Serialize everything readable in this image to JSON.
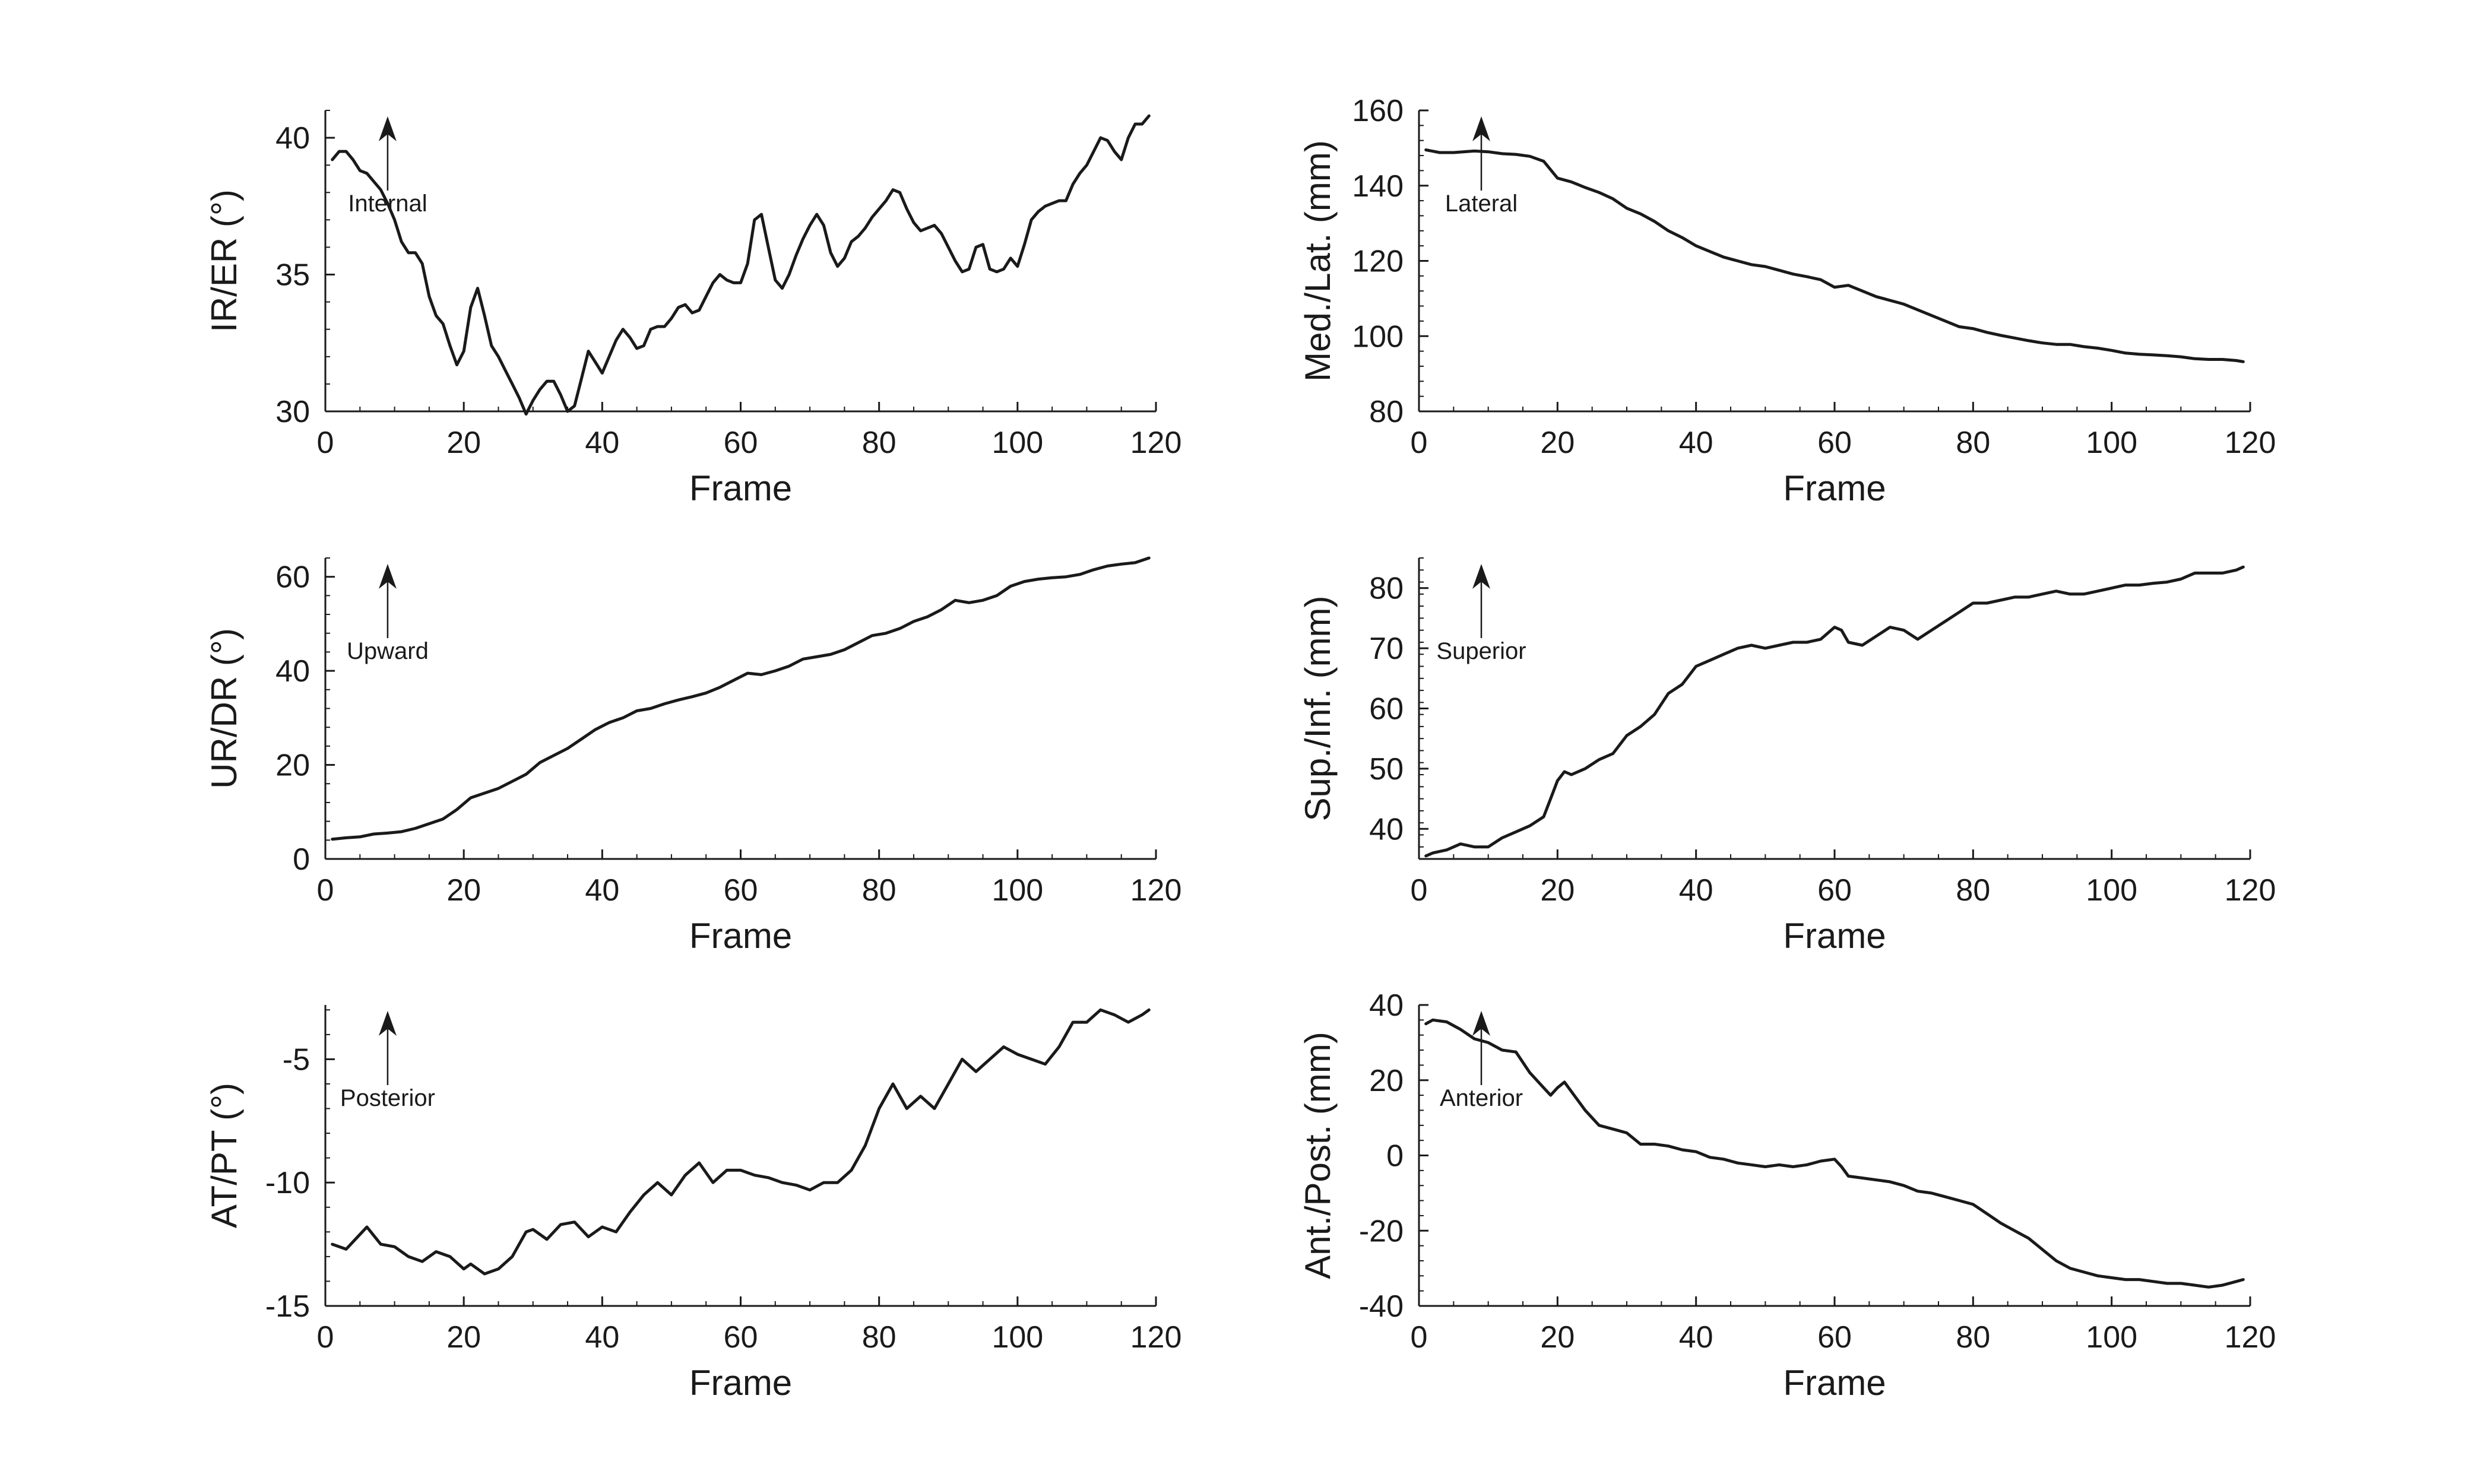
{
  "chart_data": [
    {
      "type": "line",
      "panel": "top-left",
      "xlabel": "Frame",
      "ylabel": "IR/ER (°)",
      "xlim": [
        0,
        120
      ],
      "ylim": [
        30,
        41
      ],
      "xticks": [
        0,
        20,
        40,
        60,
        80,
        100,
        120
      ],
      "yticks": [
        30,
        35,
        40
      ],
      "grid": false,
      "annotation": {
        "text": "Internal",
        "arrow": "up",
        "x": 9
      },
      "series": [
        {
          "x": [
            1,
            2,
            3,
            4,
            5,
            6,
            7,
            8,
            9,
            10,
            11,
            12,
            13,
            14,
            15,
            16,
            17,
            18,
            19,
            20,
            21,
            22,
            23,
            24,
            25,
            26,
            27,
            28,
            29,
            30,
            31,
            32,
            33,
            34,
            35,
            36,
            37,
            38,
            39,
            40,
            41,
            42,
            43,
            44,
            45,
            46,
            47,
            48,
            49,
            50,
            51,
            52,
            53,
            54,
            55,
            56,
            57,
            58,
            59,
            60,
            61,
            62,
            63,
            64,
            65,
            66,
            67,
            68,
            69,
            70,
            71,
            72,
            73,
            74,
            75,
            76,
            77,
            78,
            79,
            80,
            81,
            82,
            83,
            84,
            85,
            86,
            87,
            88,
            89,
            90,
            91,
            92,
            93,
            94,
            95,
            96,
            97,
            98,
            99,
            100,
            101,
            102,
            103,
            104,
            105,
            106,
            107,
            108,
            109,
            110,
            111,
            112,
            113,
            114,
            115,
            116,
            117,
            118,
            119
          ],
          "values": [
            39.2,
            39.5,
            39.5,
            39.2,
            38.8,
            38.7,
            38.4,
            38.1,
            37.6,
            37.0,
            36.2,
            35.8,
            35.8,
            35.4,
            34.2,
            33.5,
            33.2,
            32.4,
            31.7,
            32.2,
            33.8,
            34.5,
            33.5,
            32.4,
            32.0,
            31.5,
            31.0,
            30.5,
            29.9,
            30.4,
            30.8,
            31.1,
            31.1,
            30.6,
            30.0,
            30.2,
            31.2,
            32.2,
            31.8,
            31.4,
            32.0,
            32.6,
            33.0,
            32.7,
            32.3,
            32.4,
            33.0,
            33.1,
            33.1,
            33.4,
            33.8,
            33.9,
            33.6,
            33.7,
            34.2,
            34.7,
            35.0,
            34.8,
            34.7,
            34.7,
            35.4,
            37.0,
            37.2,
            36.0,
            34.8,
            34.5,
            35.0,
            35.7,
            36.3,
            36.8,
            37.2,
            36.8,
            35.8,
            35.3,
            35.6,
            36.2,
            36.4,
            36.7,
            37.1,
            37.4,
            37.7,
            38.1,
            38.0,
            37.4,
            36.9,
            36.6,
            36.7,
            36.8,
            36.5,
            36.0,
            35.5,
            35.1,
            35.2,
            36.0,
            36.1,
            35.2,
            35.1,
            35.2,
            35.6,
            35.3,
            36.1,
            37.0,
            37.3,
            37.5,
            37.6,
            37.7,
            37.7,
            38.3,
            38.7,
            39.0,
            39.5,
            40.0,
            39.9,
            39.5,
            39.2,
            40.0,
            40.5,
            40.5,
            40.8
          ]
        }
      ]
    },
    {
      "type": "line",
      "panel": "top-right",
      "xlabel": "Frame",
      "ylabel": "Med./Lat. (mm)",
      "xlim": [
        0,
        120
      ],
      "ylim": [
        80,
        160
      ],
      "xticks": [
        0,
        20,
        40,
        60,
        80,
        100,
        120
      ],
      "yticks": [
        80,
        100,
        120,
        140,
        160
      ],
      "grid": false,
      "annotation": {
        "text": "Lateral",
        "arrow": "up",
        "x": 9
      },
      "series": [
        {
          "x": [
            1,
            3,
            5,
            8,
            10,
            12,
            14,
            16,
            18,
            20,
            22,
            24,
            26,
            28,
            30,
            32,
            34,
            36,
            38,
            40,
            42,
            44,
            46,
            48,
            50,
            52,
            54,
            56,
            58,
            60,
            62,
            64,
            66,
            68,
            70,
            72,
            74,
            76,
            78,
            80,
            82,
            84,
            86,
            88,
            90,
            92,
            94,
            96,
            98,
            100,
            102,
            104,
            106,
            108,
            110,
            112,
            114,
            116,
            118,
            119
          ],
          "values": [
            149.5,
            148.8,
            148.8,
            149.2,
            149.0,
            148.5,
            148.3,
            147.8,
            146.5,
            142.0,
            141.0,
            139.5,
            138.2,
            136.5,
            134.0,
            132.5,
            130.5,
            128.0,
            126.2,
            124.0,
            122.5,
            121.0,
            120.0,
            119.0,
            118.5,
            117.5,
            116.5,
            115.8,
            115.0,
            113.0,
            113.5,
            112.0,
            110.5,
            109.5,
            108.5,
            107.0,
            105.5,
            104.0,
            102.5,
            102.0,
            101.0,
            100.2,
            99.5,
            98.8,
            98.2,
            97.8,
            97.8,
            97.2,
            96.8,
            96.2,
            95.5,
            95.2,
            95.0,
            94.8,
            94.5,
            94.0,
            93.8,
            93.8,
            93.5,
            93.2
          ]
        }
      ]
    },
    {
      "type": "line",
      "panel": "middle-left",
      "xlabel": "Frame",
      "ylabel": "UR/DR (°)",
      "xlim": [
        0,
        120
      ],
      "ylim": [
        0,
        64
      ],
      "xticks": [
        0,
        20,
        40,
        60,
        80,
        100,
        120
      ],
      "yticks": [
        0,
        20,
        40,
        60
      ],
      "grid": false,
      "annotation": {
        "text": "Upward",
        "arrow": "up",
        "x": 9
      },
      "series": [
        {
          "x": [
            1,
            3,
            5,
            7,
            9,
            11,
            13,
            15,
            17,
            19,
            21,
            23,
            25,
            27,
            29,
            31,
            33,
            35,
            37,
            39,
            41,
            43,
            45,
            47,
            49,
            51,
            53,
            55,
            57,
            59,
            61,
            63,
            65,
            67,
            69,
            71,
            73,
            75,
            77,
            79,
            81,
            83,
            85,
            87,
            89,
            91,
            93,
            95,
            97,
            99,
            101,
            103,
            105,
            107,
            109,
            111,
            113,
            115,
            117,
            119
          ],
          "values": [
            4.2,
            4.5,
            4.7,
            5.3,
            5.5,
            5.8,
            6.5,
            7.5,
            8.5,
            10.5,
            13.0,
            14.0,
            15.0,
            16.5,
            18.0,
            20.5,
            22.0,
            23.5,
            25.5,
            27.5,
            29.0,
            30.0,
            31.5,
            32.0,
            33.0,
            33.8,
            34.5,
            35.3,
            36.5,
            38.0,
            39.5,
            39.2,
            40.0,
            41.0,
            42.5,
            43.0,
            43.5,
            44.5,
            46.0,
            47.5,
            48.0,
            49.0,
            50.5,
            51.5,
            53.0,
            55.0,
            54.5,
            55.0,
            56.0,
            58.0,
            59.0,
            59.5,
            59.8,
            60.0,
            60.5,
            61.5,
            62.3,
            62.7,
            63.0,
            64.0
          ]
        }
      ]
    },
    {
      "type": "line",
      "panel": "middle-right",
      "xlabel": "Frame",
      "ylabel": "Sup./Inf. (mm)",
      "xlim": [
        0,
        120
      ],
      "ylim": [
        35,
        85
      ],
      "xticks": [
        0,
        20,
        40,
        60,
        80,
        100,
        120
      ],
      "yticks": [
        40,
        50,
        60,
        70,
        80
      ],
      "grid": false,
      "annotation": {
        "text": "Superior",
        "arrow": "up",
        "x": 9
      },
      "series": [
        {
          "x": [
            1,
            2,
            4,
            6,
            8,
            10,
            12,
            14,
            16,
            18,
            19,
            20,
            21,
            22,
            24,
            26,
            28,
            30,
            32,
            34,
            36,
            38,
            40,
            42,
            44,
            46,
            48,
            50,
            52,
            54,
            56,
            58,
            60,
            61,
            62,
            64,
            66,
            68,
            70,
            72,
            74,
            76,
            78,
            80,
            82,
            84,
            86,
            88,
            90,
            92,
            94,
            96,
            98,
            100,
            102,
            104,
            106,
            108,
            110,
            112,
            114,
            116,
            118,
            119
          ],
          "values": [
            35.5,
            36.0,
            36.5,
            37.5,
            37.0,
            37.0,
            38.5,
            39.5,
            40.5,
            42.0,
            45.0,
            48.0,
            49.5,
            49.0,
            50.0,
            51.5,
            52.5,
            55.5,
            57.0,
            59.0,
            62.5,
            64.0,
            67.0,
            68.0,
            69.0,
            70.0,
            70.5,
            70.0,
            70.5,
            71.0,
            71.0,
            71.5,
            73.5,
            73.0,
            71.0,
            70.5,
            72.0,
            73.5,
            73.0,
            71.5,
            73.0,
            74.5,
            76.0,
            77.5,
            77.5,
            78.0,
            78.5,
            78.5,
            79.0,
            79.5,
            79.0,
            79.0,
            79.5,
            80.0,
            80.5,
            80.5,
            80.8,
            81.0,
            81.5,
            82.5,
            82.5,
            82.5,
            83.0,
            83.5
          ]
        }
      ]
    },
    {
      "type": "line",
      "panel": "bottom-left",
      "xlabel": "Frame",
      "ylabel": "AT/PT (°)",
      "xlim": [
        0,
        120
      ],
      "ylim": [
        -15,
        -2.8
      ],
      "xticks": [
        0,
        20,
        40,
        60,
        80,
        100,
        120
      ],
      "yticks": [
        -15,
        -10,
        -5
      ],
      "grid": false,
      "annotation": {
        "text": "Posterior",
        "arrow": "up",
        "x": 9
      },
      "series": [
        {
          "x": [
            1,
            3,
            4,
            6,
            8,
            10,
            12,
            14,
            16,
            18,
            20,
            21,
            23,
            25,
            27,
            29,
            30,
            32,
            34,
            36,
            38,
            40,
            42,
            44,
            46,
            48,
            50,
            52,
            54,
            56,
            58,
            60,
            62,
            64,
            66,
            68,
            70,
            72,
            74,
            76,
            78,
            80,
            82,
            84,
            86,
            88,
            90,
            92,
            94,
            96,
            98,
            100,
            102,
            104,
            106,
            108,
            110,
            112,
            114,
            116,
            118,
            119
          ],
          "values": [
            -12.5,
            -12.7,
            -12.4,
            -11.8,
            -12.5,
            -12.6,
            -13.0,
            -13.2,
            -12.8,
            -13.0,
            -13.5,
            -13.3,
            -13.7,
            -13.5,
            -13.0,
            -12.0,
            -11.9,
            -12.3,
            -11.7,
            -11.6,
            -12.2,
            -11.8,
            -12.0,
            -11.2,
            -10.5,
            -10.0,
            -10.5,
            -9.7,
            -9.2,
            -10.0,
            -9.5,
            -9.5,
            -9.7,
            -9.8,
            -10.0,
            -10.1,
            -10.3,
            -10.0,
            -10.0,
            -9.5,
            -8.5,
            -7.0,
            -6.0,
            -7.0,
            -6.5,
            -7.0,
            -6.0,
            -5.0,
            -5.5,
            -5.0,
            -4.5,
            -4.8,
            -5.0,
            -5.2,
            -4.5,
            -3.5,
            -3.5,
            -3.0,
            -3.2,
            -3.5,
            -3.2,
            -3.0
          ]
        }
      ]
    },
    {
      "type": "line",
      "panel": "bottom-right",
      "xlabel": "Frame",
      "ylabel": "Ant./Post. (mm)",
      "xlim": [
        0,
        120
      ],
      "ylim": [
        -40,
        40
      ],
      "xticks": [
        0,
        20,
        40,
        60,
        80,
        100,
        120
      ],
      "yticks": [
        -40,
        -20,
        0,
        20,
        40
      ],
      "grid": false,
      "annotation": {
        "text": "Anterior",
        "arrow": "up",
        "x": 9
      },
      "series": [
        {
          "x": [
            1,
            2,
            4,
            6,
            8,
            10,
            12,
            14,
            16,
            18,
            19,
            20,
            21,
            22,
            24,
            26,
            28,
            30,
            32,
            34,
            36,
            38,
            40,
            42,
            44,
            46,
            48,
            50,
            52,
            54,
            56,
            58,
            60,
            61,
            62,
            64,
            66,
            68,
            70,
            72,
            74,
            76,
            78,
            80,
            82,
            84,
            86,
            88,
            90,
            92,
            94,
            96,
            98,
            100,
            102,
            104,
            106,
            108,
            110,
            112,
            114,
            116,
            118,
            119
          ],
          "values": [
            35.0,
            36.0,
            35.5,
            33.5,
            31.0,
            30.0,
            28.0,
            27.5,
            22.0,
            18.0,
            16.0,
            18.0,
            19.5,
            17.0,
            12.0,
            8.0,
            7.0,
            6.0,
            3.0,
            3.0,
            2.5,
            1.5,
            1.0,
            -0.5,
            -1.0,
            -2.0,
            -2.5,
            -3.0,
            -2.5,
            -3.0,
            -2.5,
            -1.5,
            -1.0,
            -3.0,
            -5.5,
            -6.0,
            -6.5,
            -7.0,
            -8.0,
            -9.5,
            -10.0,
            -11.0,
            -12.0,
            -13.0,
            -15.5,
            -18.0,
            -20.0,
            -22.0,
            -25.0,
            -28.0,
            -30.0,
            -31.0,
            -32.0,
            -32.5,
            -33.0,
            -33.0,
            -33.5,
            -34.0,
            -34.0,
            -34.5,
            -35.0,
            -34.5,
            -33.5,
            -33.0
          ]
        }
      ]
    }
  ]
}
